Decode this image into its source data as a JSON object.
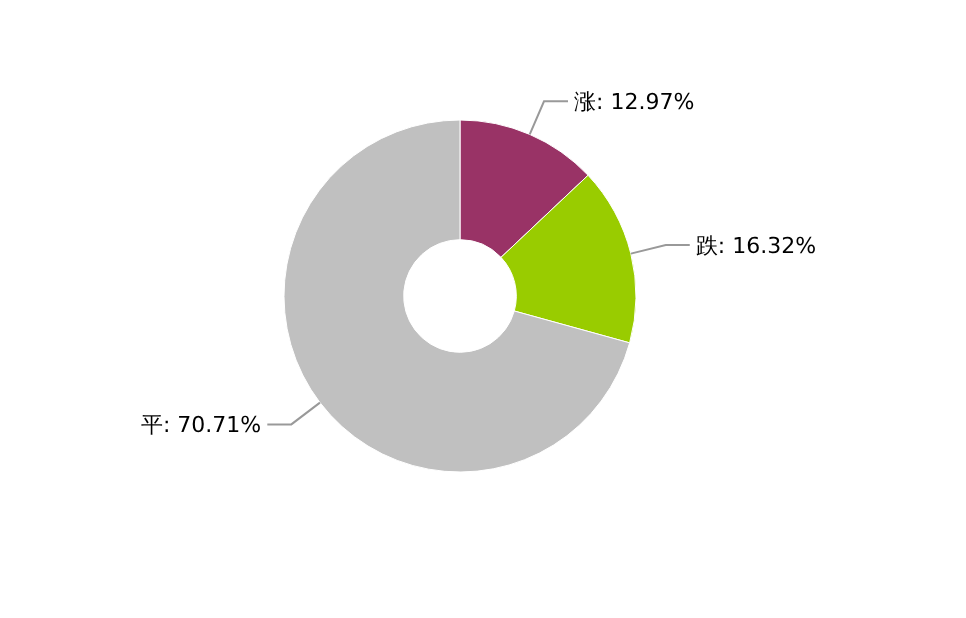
{
  "chart_data": {
    "type": "donut",
    "categories": [
      "涨",
      "跌",
      "平"
    ],
    "values": [
      12.97,
      16.32,
      70.71
    ],
    "colors": [
      "#993366",
      "#99cc00",
      "#c0c0c0"
    ],
    "value_labels": [
      "12.97%",
      "16.32%",
      "70.71%"
    ]
  }
}
